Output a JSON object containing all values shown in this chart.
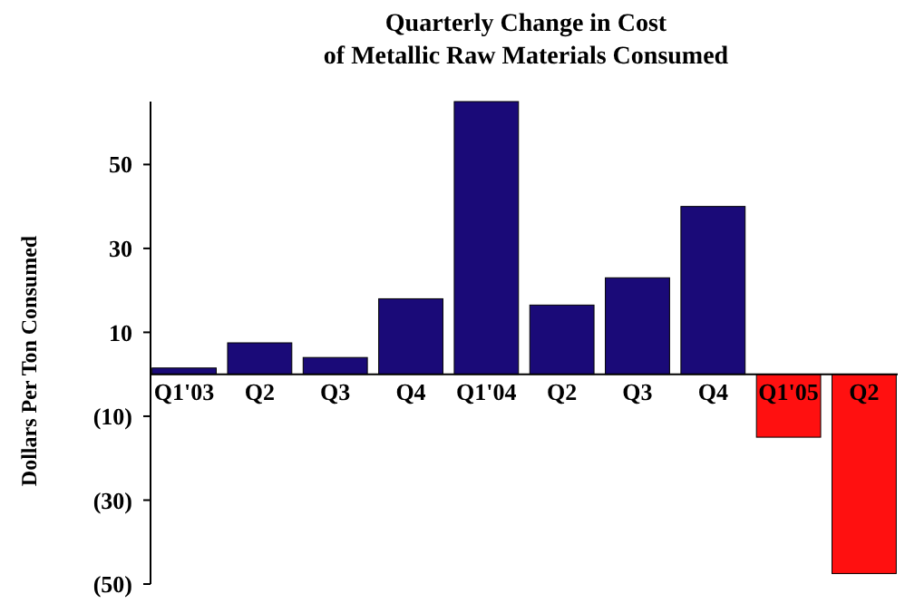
{
  "chart_data": {
    "type": "bar",
    "title": "Quarterly Change in Cost of Metallic Raw Materials Consumed",
    "ylabel": "Dollars Per Ton Consumed",
    "categories": [
      "Q1'03",
      "Q2",
      "Q3",
      "Q4",
      "Q1'04",
      "Q2",
      "Q3",
      "Q4",
      "Q1'05",
      "Q2"
    ],
    "values": [
      1.5,
      7.5,
      4,
      18,
      65,
      16.5,
      23,
      40,
      -15,
      -47.5
    ],
    "colors": [
      "#1a0a78",
      "#1a0a78",
      "#1a0a78",
      "#1a0a78",
      "#1a0a78",
      "#1a0a78",
      "#1a0a78",
      "#1a0a78",
      "#ff1010",
      "#ff1010"
    ],
    "ylim": [
      -50,
      65
    ],
    "yticks": [
      {
        "value": -50,
        "label": "(50)"
      },
      {
        "value": -30,
        "label": "(30)"
      },
      {
        "value": -10,
        "label": "(10)"
      },
      10,
      30,
      50
    ],
    "grid": false
  }
}
